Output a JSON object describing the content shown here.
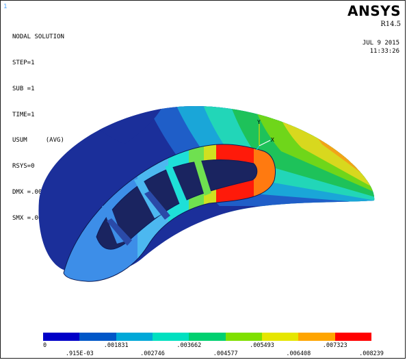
{
  "window_number": "1",
  "solution": {
    "title": "NODAL SOLUTION",
    "step": "STEP=1",
    "sub": "SUB =1",
    "time": "TIME=1",
    "result": "USUM     (AVG)",
    "rsys": "RSYS=0",
    "dmx": "DMX =.008239",
    "smx": "SMX =.008239"
  },
  "brand": {
    "logo": "ANSYS",
    "version": "R14.5"
  },
  "date": "JUL  9 2015",
  "time": "11:33:26",
  "triad": {
    "y_label": "Y",
    "x_label": "X"
  },
  "legend": {
    "colors": [
      "#0000c8",
      "#0057c8",
      "#00a8d8",
      "#00e0c0",
      "#00d070",
      "#7fe000",
      "#e6e600",
      "#ffa500",
      "#ff0000"
    ],
    "labels_top": [
      "0",
      ".001831",
      ".003662",
      ".005493",
      ".007323"
    ],
    "labels_bottom": [
      ".915E-03",
      ".002746",
      ".004577",
      ".006408",
      ".008239"
    ]
  }
}
